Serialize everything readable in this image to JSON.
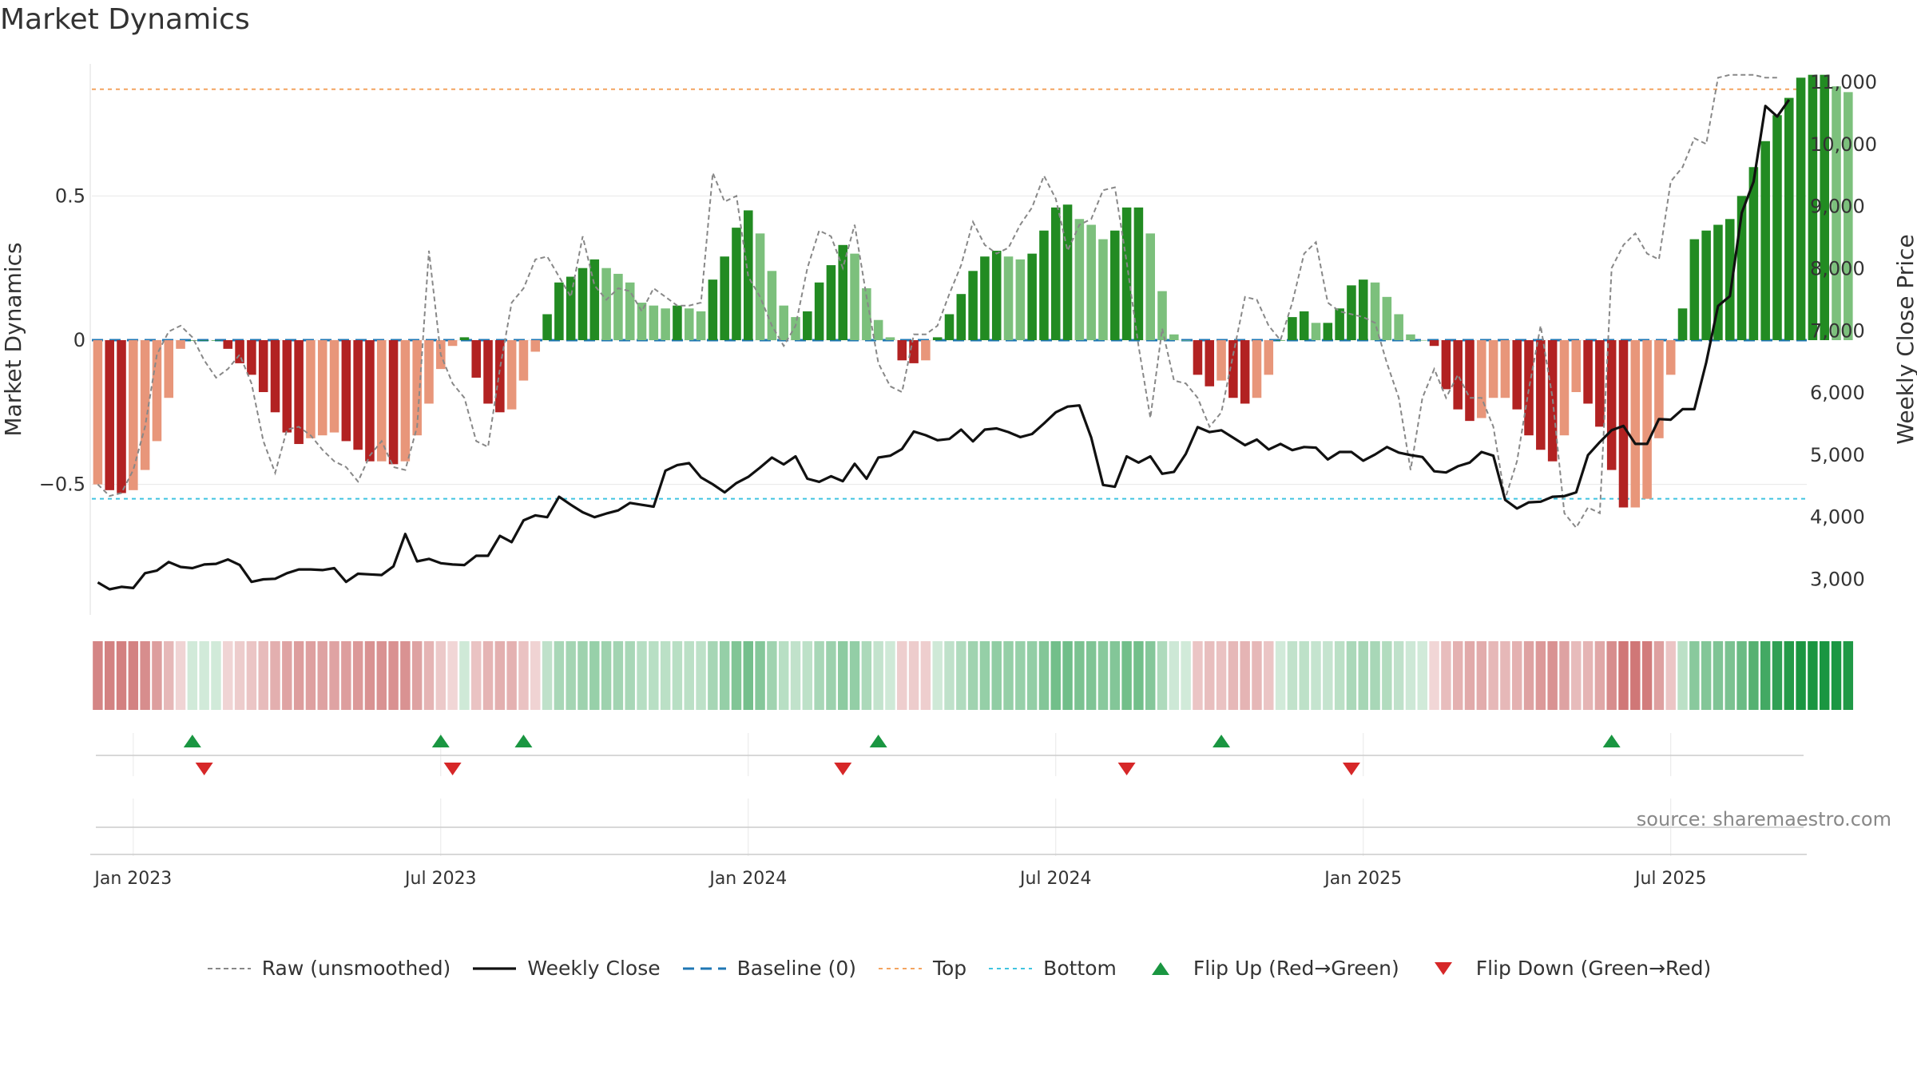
{
  "title": "Market Dynamics",
  "source": "source: sharemaestro.com",
  "colors": {
    "strong_green": "#228b22",
    "light_green": "#7cc07c",
    "strong_red": "#b22222",
    "light_red": "#e8967a",
    "raw": "#888888",
    "close": "#111111",
    "baseline": "#1f77b4",
    "top": "#f4a460",
    "bottom": "#40c4e0",
    "flip_up": "#1a9641",
    "flip_down": "#d62728"
  },
  "chart_data": {
    "type": "bar+line",
    "title": "Market Dynamics",
    "ylabel_left": "Market Dynamics",
    "ylabel_right": "Weekly Close Price",
    "left_ticks": [
      {
        "v": 0.5,
        "label": "0.5"
      },
      {
        "v": 0,
        "label": "0"
      },
      {
        "v": -0.5,
        "label": "−0.5"
      }
    ],
    "right_ticks": [
      {
        "v": 3000,
        "label": "3,000"
      },
      {
        "v": 4000,
        "label": "4,000"
      },
      {
        "v": 5000,
        "label": "5,000"
      },
      {
        "v": 6000,
        "label": "6,000"
      },
      {
        "v": 7000,
        "label": "7,000"
      },
      {
        "v": 8000,
        "label": "8,000"
      },
      {
        "v": 9000,
        "label": "9,000"
      },
      {
        "v": 10000,
        "label": "10,000"
      },
      {
        "v": 11000,
        "label": "11,000"
      }
    ],
    "ylim_left": [
      -0.98,
      0.98
    ],
    "ylim_right": [
      2300,
      11400
    ],
    "top_level": 0.87,
    "bottom_level": -0.55,
    "weeks": 145,
    "x_ticks": [
      {
        "week": 3,
        "label": "Jan 2023"
      },
      {
        "week": 29,
        "label": "Jul 2023"
      },
      {
        "week": 55,
        "label": "Jan 2024"
      },
      {
        "week": 81,
        "label": "Jul 2024"
      },
      {
        "week": 107,
        "label": "Jan 2025"
      },
      {
        "week": 133,
        "label": "Jul 2025"
      }
    ],
    "flip_up_weeks": [
      8,
      29,
      36,
      66,
      95,
      128
    ],
    "flip_down_weeks": [
      9,
      30,
      63,
      87,
      106
    ],
    "smoothed": [
      -0.5,
      -0.52,
      -0.53,
      -0.52,
      -0.45,
      -0.35,
      -0.2,
      -0.03,
      0,
      0,
      0,
      -0.03,
      -0.08,
      -0.12,
      -0.18,
      -0.25,
      -0.32,
      -0.36,
      -0.34,
      -0.33,
      -0.32,
      -0.35,
      -0.38,
      -0.42,
      -0.42,
      -0.43,
      -0.42,
      -0.33,
      -0.22,
      -0.1,
      -0.02,
      0.01,
      -0.13,
      -0.22,
      -0.25,
      -0.24,
      -0.14,
      -0.04,
      0.09,
      0.2,
      0.22,
      0.25,
      0.28,
      0.25,
      0.23,
      0.2,
      0.13,
      0.12,
      0.11,
      0.12,
      0.11,
      0.1,
      0.21,
      0.29,
      0.39,
      0.45,
      0.37,
      0.24,
      0.12,
      0.08,
      0.1,
      0.2,
      0.26,
      0.33,
      0.3,
      0.18,
      0.07,
      0.01,
      -0.07,
      -0.08,
      -0.07,
      0.01,
      0.09,
      0.16,
      0.24,
      0.29,
      0.31,
      0.29,
      0.28,
      0.3,
      0.38,
      0.46,
      0.47,
      0.42,
      0.4,
      0.35,
      0.38,
      0.46,
      0.46,
      0.37,
      0.17,
      0.02,
      0,
      -0.12,
      -0.16,
      -0.14,
      -0.2,
      -0.22,
      -0.2,
      -0.12,
      0,
      0.08,
      0.1,
      0.06,
      0.06,
      0.11,
      0.19,
      0.21,
      0.2,
      0.15,
      0.09,
      0.02,
      0,
      -0.02,
      -0.17,
      -0.24,
      -0.28,
      -0.27,
      -0.2,
      -0.2,
      -0.24,
      -0.33,
      -0.38,
      -0.42,
      -0.33,
      -0.18,
      -0.22,
      -0.3,
      -0.45,
      -0.58,
      -0.58,
      -0.55,
      -0.34,
      -0.12,
      0.11,
      0.35,
      0.38,
      0.4,
      0.42,
      0.5,
      0.6,
      0.69,
      0.78,
      0.84,
      0.91,
      0.92,
      0.92,
      0.88,
      0.86
    ],
    "raw": [
      -0.5,
      -0.54,
      -0.53,
      -0.45,
      -0.3,
      -0.05,
      0.03,
      0.05,
      0.01,
      -0.07,
      -0.13,
      -0.1,
      -0.05,
      -0.15,
      -0.35,
      -0.46,
      -0.31,
      -0.3,
      -0.33,
      -0.38,
      -0.42,
      -0.44,
      -0.49,
      -0.4,
      -0.35,
      -0.44,
      -0.45,
      -0.3,
      0.31,
      -0.05,
      -0.15,
      -0.2,
      -0.35,
      -0.37,
      -0.1,
      0.13,
      0.18,
      0.28,
      0.29,
      0.22,
      0.15,
      0.36,
      0.19,
      0.14,
      0.18,
      0.17,
      0.1,
      0.18,
      0.15,
      0.12,
      0.12,
      0.13,
      0.58,
      0.48,
      0.5,
      0.22,
      0.15,
      0.05,
      -0.02,
      0.05,
      0.25,
      0.38,
      0.36,
      0.25,
      0.4,
      0.15,
      -0.08,
      -0.16,
      -0.18,
      0.02,
      0.02,
      0.05,
      0.16,
      0.26,
      0.41,
      0.33,
      0.3,
      0.32,
      0.4,
      0.46,
      0.57,
      0.49,
      0.31,
      0.4,
      0.42,
      0.52,
      0.53,
      0.27,
      -0.02,
      -0.27,
      0.04,
      -0.14,
      -0.15,
      -0.2,
      -0.3,
      -0.25,
      -0.05,
      0.15,
      0.14,
      0.05,
      0,
      0.13,
      0.3,
      0.34,
      0.13,
      0.1,
      0.09,
      0.08,
      0.06,
      -0.08,
      -0.2,
      -0.45,
      -0.2,
      -0.1,
      -0.2,
      -0.12,
      -0.2,
      -0.2,
      -0.3,
      -0.55,
      -0.42,
      -0.17,
      0.05,
      -0.2,
      -0.6,
      -0.65,
      -0.58,
      -0.6,
      0.25,
      0.33,
      0.37,
      0.3,
      0.28,
      0.55,
      0.6,
      0.7,
      0.68,
      0.91,
      0.92,
      0.92,
      0.92,
      0.91,
      0.91
    ],
    "close": [
      2950,
      2840,
      2880,
      2860,
      3100,
      3140,
      3280,
      3200,
      3180,
      3240,
      3250,
      3320,
      3230,
      2960,
      3000,
      3010,
      3100,
      3160,
      3160,
      3150,
      3180,
      2960,
      3090,
      3080,
      3070,
      3210,
      3730,
      3290,
      3330,
      3260,
      3240,
      3230,
      3380,
      3380,
      3700,
      3600,
      3950,
      4030,
      4000,
      4330,
      4200,
      4080,
      4000,
      4060,
      4110,
      4230,
      4200,
      4170,
      4750,
      4840,
      4870,
      4640,
      4530,
      4400,
      4550,
      4650,
      4800,
      4960,
      4850,
      4980,
      4620,
      4570,
      4660,
      4580,
      4860,
      4620,
      4960,
      4990,
      5100,
      5380,
      5320,
      5240,
      5260,
      5410,
      5220,
      5410,
      5430,
      5370,
      5290,
      5340,
      5510,
      5690,
      5780,
      5800,
      5280,
      4520,
      4490,
      4980,
      4880,
      4980,
      4700,
      4730,
      5020,
      5450,
      5370,
      5400,
      5280,
      5160,
      5250,
      5090,
      5180,
      5080,
      5130,
      5120,
      4930,
      5050,
      5050,
      4910,
      5010,
      5130,
      5040,
      5000,
      4970,
      4740,
      4720,
      4820,
      4880,
      5050,
      4990,
      4280,
      4140,
      4240,
      4250,
      4330,
      4340,
      4400,
      5000,
      5210,
      5400,
      5470,
      5180,
      5180,
      5580,
      5570,
      5740,
      5740,
      6490,
      7400,
      7560,
      8900,
      9400,
      10620,
      10450,
      10720
    ]
  },
  "legend": [
    {
      "key": "raw",
      "label": "Raw (unsmoothed)"
    },
    {
      "key": "close",
      "label": "Weekly Close"
    },
    {
      "key": "baseline",
      "label": "Baseline (0)"
    },
    {
      "key": "top",
      "label": "Top"
    },
    {
      "key": "bottom",
      "label": "Bottom"
    },
    {
      "key": "flip_up",
      "label": "Flip Up (Red→Green)"
    },
    {
      "key": "flip_down",
      "label": "Flip Down (Green→Red)"
    }
  ]
}
